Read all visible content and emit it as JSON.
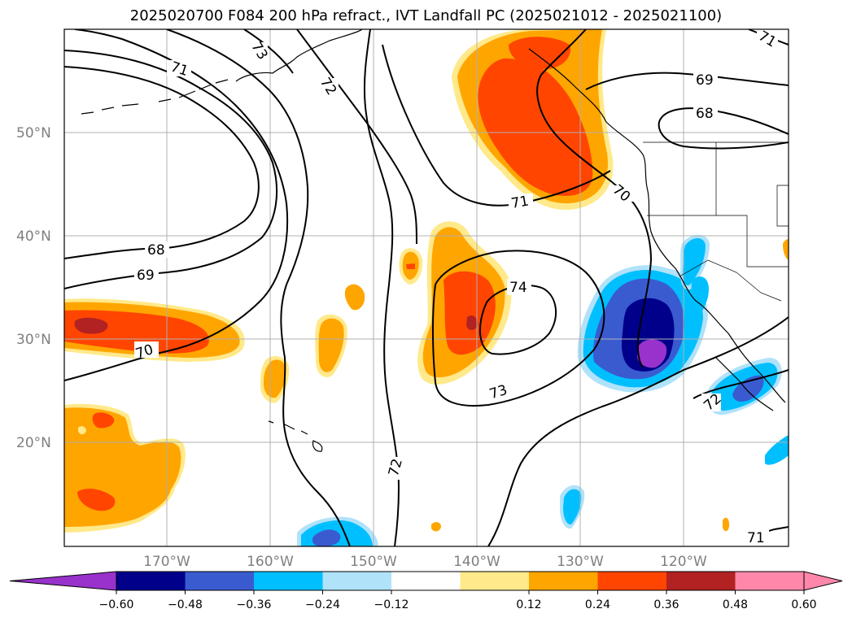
{
  "title": "2025020700 F084 200 hPa refract., IVT Landfall PC (2025021012 - 2025021100)",
  "lat_labels": [
    "50°N",
    "40°N",
    "30°N",
    "20°N"
  ],
  "lon_labels": [
    "170°W",
    "160°W",
    "150°W",
    "140°W",
    "130°W",
    "120°W"
  ],
  "contour_labels": [
    "71",
    "73",
    "72",
    "71",
    "70",
    "69",
    "68",
    "68",
    "69",
    "70",
    "74",
    "73",
    "72",
    "72",
    "71",
    "71"
  ],
  "colorbar": {
    "ticks": [
      "−0.60",
      "−0.48",
      "−0.36",
      "−0.24",
      "−0.12",
      "0.12",
      "0.24",
      "0.36",
      "0.48",
      "0.60"
    ],
    "colors": [
      "#9932cc",
      "#00008b",
      "#3a5bd0",
      "#00bfff",
      "#b0e2fa",
      "#ffffff",
      "#ffe98a",
      "#ffa500",
      "#ff4500",
      "#b22222",
      "#ff88aa",
      "#ff88aa"
    ]
  }
}
